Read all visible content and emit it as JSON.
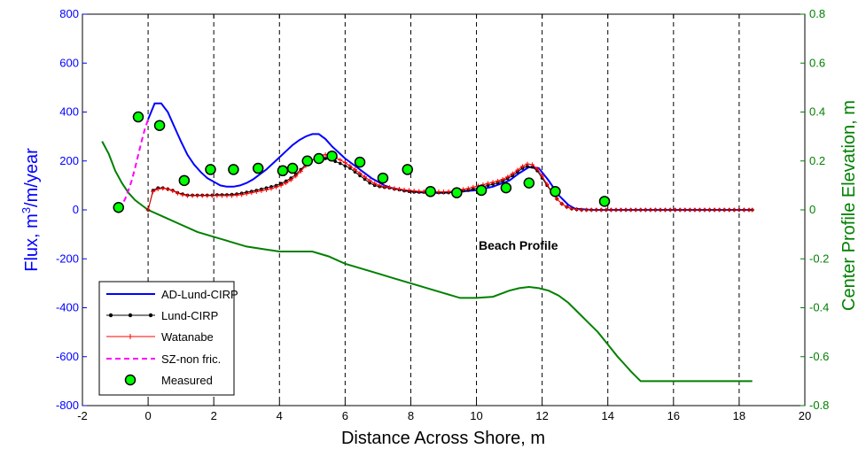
{
  "chart_data": {
    "type": "line",
    "xlabel": "Distance Across Shore, m",
    "ylabel_left": "Flux, m",
    "ylabel_left_sup": "3",
    "ylabel_left_suffix": "/m/year",
    "ylabel_right": "Center Profile Elevation, m",
    "xlim": [
      -2,
      20
    ],
    "ylim_left": [
      -800,
      800
    ],
    "ylim_right": [
      -0.8,
      0.8
    ],
    "xticks": [
      "-2",
      "0",
      "2",
      "4",
      "6",
      "8",
      "10",
      "12",
      "14",
      "16",
      "18",
      "20"
    ],
    "yticks_left": [
      "-800",
      "-600",
      "-400",
      "-200",
      "0",
      "200",
      "400",
      "600",
      "800"
    ],
    "yticks_right": [
      "-0.8",
      "-0.6",
      "-0.4",
      "-0.2",
      "0",
      "0.2",
      "0.4",
      "0.6",
      "0.8"
    ],
    "vgrid_x": [
      0,
      2,
      4,
      6,
      8,
      10,
      12,
      14,
      16,
      18
    ],
    "grid": "vertical dashed",
    "legend_position": "lower-left",
    "annotation": "Beach Profile",
    "colors": {
      "left_axis": "#0000ff",
      "right_axis": "#008000",
      "ad_lund": "#0000ff",
      "lund": "#000000",
      "watanabe": "#ff0000",
      "sz": "#ff00ff",
      "measured": "#00ff00",
      "profile": "#008000"
    },
    "series": [
      {
        "name": "AD-Lund-CIRP",
        "axis": "left",
        "style": "solid",
        "x": [
          0,
          0.2,
          0.4,
          0.6,
          0.8,
          1.0,
          1.2,
          1.4,
          1.6,
          1.8,
          2.0,
          2.2,
          2.4,
          2.6,
          2.8,
          3.0,
          3.2,
          3.4,
          3.6,
          3.8,
          4.0,
          4.2,
          4.4,
          4.6,
          4.8,
          5.0,
          5.2,
          5.4,
          5.6,
          5.8,
          6.0,
          6.2,
          6.4,
          6.6,
          6.8,
          7.0,
          7.2,
          7.4,
          7.6,
          7.8,
          8.0,
          8.5,
          9.0,
          9.5,
          10.0,
          10.5,
          11.0,
          11.3,
          11.6,
          11.9,
          12.2,
          12.5,
          12.8,
          13.0,
          13.5,
          14.0,
          15.0,
          16.0,
          17.0,
          18.0,
          18.4
        ],
        "y": [
          370,
          435,
          435,
          400,
          340,
          280,
          225,
          185,
          155,
          130,
          115,
          100,
          95,
          95,
          100,
          110,
          125,
          145,
          165,
          190,
          215,
          240,
          265,
          285,
          300,
          310,
          310,
          290,
          260,
          235,
          210,
          190,
          170,
          150,
          130,
          115,
          100,
          90,
          85,
          80,
          75,
          70,
          70,
          75,
          80,
          95,
          120,
          150,
          175,
          170,
          120,
          60,
          20,
          5,
          0,
          0,
          0,
          0,
          0,
          0,
          0
        ]
      },
      {
        "name": "Lund-CIRP",
        "axis": "left",
        "style": "solid-dots",
        "x": [
          0,
          0.15,
          0.3,
          0.45,
          0.6,
          0.75,
          0.9,
          1.05,
          1.2,
          1.35,
          1.5,
          1.65,
          1.8,
          1.95,
          2.1,
          2.25,
          2.4,
          2.55,
          2.7,
          2.85,
          3.0,
          3.15,
          3.3,
          3.45,
          3.6,
          3.75,
          3.9,
          4.05,
          4.2,
          4.35,
          4.5,
          4.65,
          4.8,
          4.95,
          5.1,
          5.25,
          5.4,
          5.55,
          5.7,
          5.85,
          6.0,
          6.15,
          6.3,
          6.45,
          6.6,
          6.75,
          6.9,
          7.05,
          7.2,
          7.35,
          7.5,
          7.65,
          7.8,
          7.95,
          8.1,
          8.25,
          8.4,
          8.55,
          8.7,
          8.85,
          9.0,
          9.15,
          9.3,
          9.45,
          9.6,
          9.75,
          9.9,
          10.05,
          10.2,
          10.35,
          10.5,
          10.65,
          10.8,
          10.95,
          11.1,
          11.25,
          11.4,
          11.55,
          11.7,
          11.85,
          12.0,
          12.15,
          12.3,
          12.45,
          12.6,
          12.75,
          12.9,
          13.05,
          13.2,
          13.35,
          13.5,
          13.65,
          13.8,
          13.95,
          14.1,
          14.25,
          14.4,
          14.55,
          14.7,
          14.85,
          15.0,
          15.15,
          15.3,
          15.45,
          15.6,
          15.75,
          15.9,
          16.05,
          16.2,
          16.35,
          16.5,
          16.65,
          16.8,
          16.95,
          17.1,
          17.25,
          17.4,
          17.55,
          17.7,
          17.85,
          18.0,
          18.15,
          18.3,
          18.4
        ],
        "y": [
          0,
          80,
          90,
          90,
          85,
          80,
          70,
          65,
          60,
          60,
          60,
          60,
          60,
          60,
          62,
          62,
          62,
          63,
          65,
          68,
          72,
          76,
          80,
          85,
          90,
          95,
          100,
          108,
          118,
          130,
          145,
          165,
          185,
          200,
          210,
          215,
          210,
          205,
          198,
          190,
          180,
          170,
          155,
          140,
          125,
          110,
          100,
          95,
          92,
          90,
          85,
          82,
          78,
          75,
          73,
          72,
          72,
          70,
          70,
          70,
          70,
          70,
          72,
          75,
          78,
          80,
          85,
          90,
          95,
          100,
          105,
          110,
          118,
          128,
          140,
          155,
          170,
          178,
          175,
          160,
          130,
          100,
          70,
          45,
          25,
          12,
          5,
          2,
          0,
          0,
          0,
          0,
          0,
          0,
          0,
          0,
          0,
          0,
          0,
          0,
          0,
          0,
          0,
          0,
          0,
          0,
          0,
          0,
          0,
          0,
          0,
          0,
          0,
          0,
          0,
          0,
          0,
          0,
          0,
          0,
          0,
          0,
          0,
          0
        ]
      },
      {
        "name": "Watanabe",
        "axis": "left",
        "style": "solid-plus",
        "x": [
          0,
          0.15,
          0.3,
          0.45,
          0.6,
          0.75,
          0.9,
          1.05,
          1.2,
          1.35,
          1.5,
          1.65,
          1.8,
          1.95,
          2.1,
          2.25,
          2.4,
          2.55,
          2.7,
          2.85,
          3.0,
          3.15,
          3.3,
          3.45,
          3.6,
          3.75,
          3.9,
          4.05,
          4.2,
          4.35,
          4.5,
          4.65,
          4.8,
          4.95,
          5.1,
          5.25,
          5.4,
          5.55,
          5.7,
          5.85,
          6.0,
          6.15,
          6.3,
          6.45,
          6.6,
          6.75,
          6.9,
          7.05,
          7.2,
          7.35,
          7.5,
          7.65,
          7.8,
          7.95,
          8.1,
          8.25,
          8.4,
          8.55,
          8.7,
          8.85,
          9.0,
          9.15,
          9.3,
          9.45,
          9.6,
          9.75,
          9.9,
          10.05,
          10.2,
          10.35,
          10.5,
          10.65,
          10.8,
          10.95,
          11.1,
          11.25,
          11.4,
          11.55,
          11.7,
          11.85,
          12.0,
          12.15,
          12.3,
          12.45,
          12.6,
          12.75,
          12.9,
          13.05,
          13.2,
          13.35,
          13.5,
          13.65,
          13.8,
          13.95,
          14.1,
          14.25,
          14.4,
          14.55,
          14.7,
          14.85,
          15.0,
          15.15,
          15.3,
          15.45,
          15.6,
          15.75,
          15.9,
          16.05,
          16.2,
          16.35,
          16.5,
          16.65,
          16.8,
          16.95,
          17.1,
          17.25,
          17.4,
          17.55,
          17.7,
          17.85,
          18.0,
          18.15,
          18.3,
          18.4
        ],
        "y": [
          0,
          75,
          85,
          88,
          85,
          78,
          68,
          62,
          58,
          58,
          58,
          58,
          58,
          58,
          58,
          58,
          58,
          58,
          60,
          62,
          66,
          70,
          74,
          78,
          82,
          87,
          93,
          100,
          110,
          122,
          138,
          158,
          180,
          198,
          212,
          222,
          226,
          222,
          214,
          204,
          193,
          180,
          165,
          150,
          135,
          120,
          108,
          100,
          95,
          92,
          88,
          85,
          82,
          80,
          78,
          76,
          75,
          74,
          74,
          74,
          74,
          75,
          77,
          80,
          84,
          88,
          93,
          98,
          103,
          108,
          113,
          118,
          125,
          135,
          148,
          163,
          178,
          188,
          185,
          168,
          138,
          105,
          72,
          45,
          25,
          12,
          5,
          2,
          0,
          0,
          0,
          0,
          0,
          0,
          0,
          0,
          0,
          0,
          0,
          0,
          0,
          0,
          0,
          0,
          0,
          0,
          0,
          0,
          0,
          0,
          0,
          0,
          0,
          0,
          0,
          0,
          0,
          0,
          0,
          0,
          0,
          0,
          0,
          0
        ]
      },
      {
        "name": "SZ-non fric.",
        "axis": "left",
        "style": "dashed",
        "x": [
          -0.9,
          -0.8,
          -0.7,
          -0.6,
          -0.5,
          -0.4,
          -0.3,
          -0.2,
          -0.1,
          0
        ],
        "y": [
          5,
          20,
          45,
          80,
          120,
          170,
          225,
          280,
          330,
          370
        ]
      },
      {
        "name": "Measured",
        "axis": "left",
        "style": "markers",
        "x": [
          -0.9,
          -0.3,
          0.35,
          1.1,
          1.9,
          2.6,
          3.35,
          4.1,
          4.4,
          4.85,
          5.2,
          5.6,
          6.45,
          7.15,
          7.9,
          8.6,
          9.4,
          10.15,
          10.9,
          11.6,
          12.4,
          13.9
        ],
        "y": [
          10,
          380,
          345,
          120,
          165,
          165,
          170,
          160,
          170,
          200,
          210,
          220,
          195,
          130,
          165,
          75,
          70,
          80,
          90,
          110,
          75,
          35
        ]
      },
      {
        "name": "",
        "axis": "right",
        "style": "solid",
        "x": [
          -1.4,
          -1.2,
          -1.0,
          -0.8,
          -0.6,
          -0.4,
          -0.2,
          0,
          0.5,
          1.0,
          1.5,
          2.0,
          2.5,
          3.0,
          3.5,
          4.0,
          4.5,
          5.0,
          5.5,
          6.0,
          6.5,
          7.0,
          7.5,
          8.0,
          8.5,
          9.0,
          9.5,
          10.0,
          10.5,
          11.0,
          11.3,
          11.6,
          11.9,
          12.2,
          12.5,
          12.8,
          13.1,
          13.4,
          13.7,
          14.0,
          14.3,
          14.5,
          14.7,
          15.0,
          16.0,
          17.0,
          18.0,
          18.4
        ],
        "y": [
          0.28,
          0.23,
          0.16,
          0.11,
          0.07,
          0.04,
          0.02,
          0.0,
          -0.03,
          -0.06,
          -0.09,
          -0.11,
          -0.13,
          -0.15,
          -0.16,
          -0.17,
          -0.17,
          -0.17,
          -0.19,
          -0.22,
          -0.24,
          -0.26,
          -0.28,
          -0.3,
          -0.32,
          -0.34,
          -0.36,
          -0.36,
          -0.355,
          -0.33,
          -0.32,
          -0.315,
          -0.32,
          -0.33,
          -0.35,
          -0.38,
          -0.42,
          -0.46,
          -0.5,
          -0.55,
          -0.6,
          -0.63,
          -0.66,
          -0.7,
          -0.7,
          -0.7,
          -0.7,
          -0.7
        ]
      }
    ]
  }
}
